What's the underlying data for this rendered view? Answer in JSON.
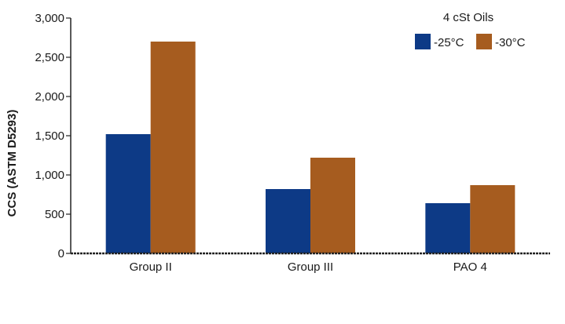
{
  "chart_data": {
    "type": "bar",
    "categories": [
      "Group II",
      "Group III",
      "PAO 4"
    ],
    "series": [
      {
        "name": "-25°C",
        "values": [
          1520,
          820,
          640
        ],
        "color": "#0d3a86"
      },
      {
        "name": "-30°C",
        "values": [
          2700,
          1220,
          870
        ],
        "color": "#a65c1f"
      }
    ],
    "ylabel": "CCS (ASTM D5293)",
    "ylim": [
      0,
      3000
    ],
    "yticks": [
      0,
      500,
      1000,
      1500,
      2000,
      2500,
      3000
    ],
    "ytick_labels": [
      "0",
      "500",
      "1,000",
      "1,500",
      "2,000",
      "2,500",
      "3,000"
    ],
    "grid": false,
    "legend": {
      "title": "4 cSt Oils",
      "position": "top-right"
    }
  }
}
